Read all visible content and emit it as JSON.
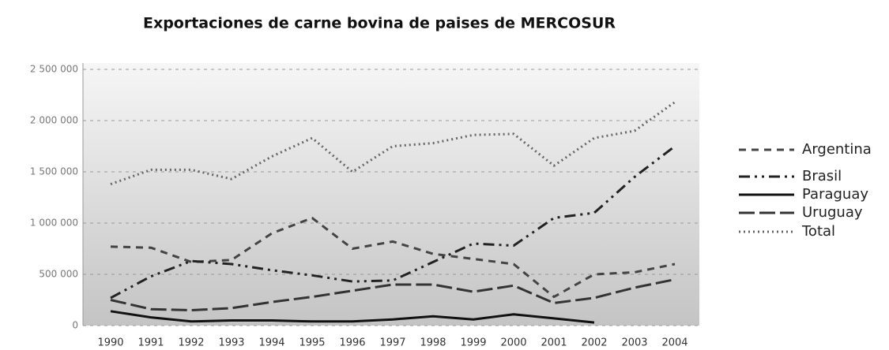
{
  "chart_data": {
    "type": "line",
    "title": "Exportaciones de carne bovina de paises de MERCOSUR",
    "categories": [
      "1990",
      "1991",
      "1992",
      "1993",
      "1994",
      "1995",
      "1996",
      "1997",
      "1998",
      "1999",
      "2000",
      "2001",
      "2002",
      "2003",
      "2004"
    ],
    "series": [
      {
        "name": "Argentina",
        "color": "#444444",
        "dash": "dashed",
        "values": [
          770000,
          760000,
          620000,
          640000,
          900000,
          1050000,
          750000,
          820000,
          700000,
          650000,
          600000,
          280000,
          500000,
          520000,
          600000
        ]
      },
      {
        "name": "Brasil",
        "color": "#222222",
        "dash": "dashdot",
        "values": [
          270000,
          480000,
          630000,
          600000,
          540000,
          490000,
          430000,
          440000,
          620000,
          800000,
          780000,
          1050000,
          1100000,
          1450000,
          1750000
        ]
      },
      {
        "name": "Paraguay",
        "color": "#111111",
        "dash": "solid",
        "values": [
          140000,
          80000,
          40000,
          50000,
          50000,
          40000,
          40000,
          60000,
          90000,
          60000,
          110000,
          70000,
          30000,
          null,
          null
        ]
      },
      {
        "name": "Uruguay",
        "color": "#333333",
        "dash": "longdash",
        "values": [
          250000,
          160000,
          150000,
          170000,
          230000,
          280000,
          340000,
          400000,
          400000,
          330000,
          390000,
          220000,
          270000,
          370000,
          450000
        ]
      },
      {
        "name": "Total",
        "color": "#666666",
        "dash": "dotted",
        "values": [
          1380000,
          1520000,
          1520000,
          1430000,
          1650000,
          1830000,
          1500000,
          1750000,
          1780000,
          1860000,
          1870000,
          1560000,
          1830000,
          1900000,
          2180000
        ]
      }
    ],
    "ylim": [
      0,
      2500000
    ],
    "yticks": [
      0,
      {
        "value": 500000,
        "label": "500 000"
      },
      {
        "value": 1000000,
        "label": "1 000 000"
      },
      {
        "value": 1500000,
        "label": "1 500 000"
      },
      {
        "value": 2000000,
        "label": "2 000 000"
      },
      {
        "value": 2500000,
        "label": "2 500 000"
      }
    ],
    "grid": true,
    "legend": "right"
  }
}
